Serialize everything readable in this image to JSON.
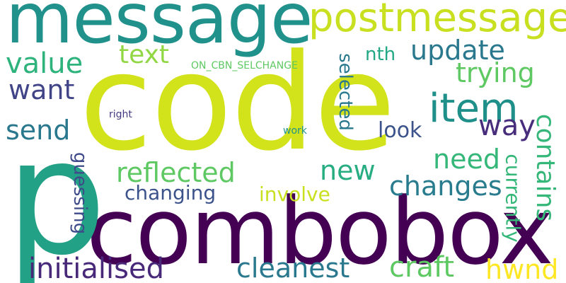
{
  "palette": {
    "dark_purple": "#440154",
    "indigo": "#3b528b",
    "slate": "#414487",
    "teal": "#21918c",
    "teal_dark": "#1f978b",
    "sea": "#2a788e",
    "green": "#35b779",
    "light_green": "#5ec962",
    "lime": "#90d743",
    "yellow_green": "#c8e020",
    "yellow": "#fde725"
  },
  "words": [
    {
      "id": "code",
      "text": "code",
      "color": "#d2e21b"
    },
    {
      "id": "combobox",
      "text": "combobox",
      "color": "#440154"
    },
    {
      "id": "p",
      "text": "p",
      "color": "#22a187"
    },
    {
      "id": "message",
      "text": "message",
      "color": "#21918c"
    },
    {
      "id": "postmessage",
      "text": "postmessage",
      "color": "#c8e020"
    },
    {
      "id": "item",
      "text": "item",
      "color": "#1f8f8a"
    },
    {
      "id": "value",
      "text": "value",
      "color": "#2eb37c"
    },
    {
      "id": "text",
      "text": "text",
      "color": "#90d743"
    },
    {
      "id": "update",
      "text": "update",
      "color": "#2a788e"
    },
    {
      "id": "trying",
      "text": "trying",
      "color": "#5ec962"
    },
    {
      "id": "want",
      "text": "want",
      "color": "#414487"
    },
    {
      "id": "send",
      "text": "send",
      "color": "#2a788e"
    },
    {
      "id": "way",
      "text": "way",
      "color": "#472d7b"
    },
    {
      "id": "look",
      "text": "look",
      "color": "#3b528b"
    },
    {
      "id": "contains",
      "text": "contains",
      "color": "#35b779"
    },
    {
      "id": "selected",
      "text": "selected",
      "color": "#2a788e"
    },
    {
      "id": "nth",
      "text": "nth",
      "color": "#22a884"
    },
    {
      "id": "on_cbn_selchange",
      "text": "ON_CBN_SELCHANGE",
      "color": "#5ec962"
    },
    {
      "id": "right",
      "text": "right",
      "color": "#443a83"
    },
    {
      "id": "work",
      "text": "work",
      "color": "#21918c"
    },
    {
      "id": "reflected",
      "text": "reflected",
      "color": "#5ec962"
    },
    {
      "id": "new",
      "text": "new",
      "color": "#27ad81"
    },
    {
      "id": "need",
      "text": "need",
      "color": "#35b779"
    },
    {
      "id": "changes",
      "text": "changes",
      "color": "#287c8e"
    },
    {
      "id": "changing",
      "text": "changing",
      "color": "#3b528b"
    },
    {
      "id": "involve",
      "text": "involve",
      "color": "#c8e020"
    },
    {
      "id": "guessing",
      "text": "guessing",
      "color": "#3e4a89"
    },
    {
      "id": "currently",
      "text": "currently",
      "color": "#35b779"
    },
    {
      "id": "initialised",
      "text": "initialised",
      "color": "#482878"
    },
    {
      "id": "cleanest",
      "text": "cleanest",
      "color": "#2a788e"
    },
    {
      "id": "craft",
      "text": "craft",
      "color": "#5ec962"
    },
    {
      "id": "hwnd",
      "text": "hwnd",
      "color": "#fde725"
    }
  ]
}
